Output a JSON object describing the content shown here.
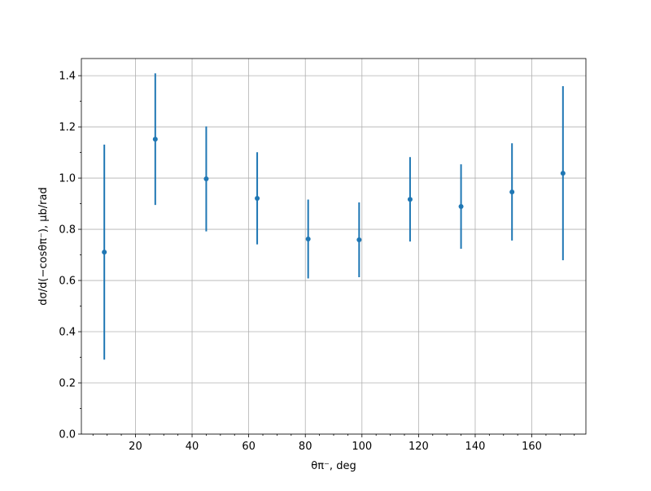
{
  "chart_data": {
    "type": "errorbar",
    "xlabel": "θπ⁻, deg",
    "ylabel": "dσ/d(−cosθπ⁻), μb/rad",
    "x": [
      9,
      27,
      45,
      63,
      81,
      99,
      117,
      135,
      153,
      171
    ],
    "series": [
      {
        "color": "#1f77b4",
        "values": [
          0.711,
          1.152,
          0.997,
          0.921,
          0.762,
          0.759,
          0.917,
          0.889,
          0.946,
          1.019
        ],
        "errors": [
          0.42,
          0.257,
          0.205,
          0.18,
          0.154,
          0.146,
          0.165,
          0.165,
          0.19,
          0.34
        ]
      }
    ],
    "xlim": [
      0.9,
      179.1
    ],
    "ylim": [
      0,
      1.467
    ],
    "xticks": [
      20,
      40,
      60,
      80,
      100,
      120,
      140,
      160
    ],
    "yticks": [
      {
        "value": 0,
        "label": "0.0"
      },
      0.2,
      0.4,
      0.6,
      0.8,
      {
        "value": 1,
        "label": "1.0"
      },
      1.2,
      1.4
    ],
    "xminorticks": [
      5,
      10,
      15,
      25,
      30,
      35,
      45,
      50,
      55,
      65,
      70,
      75,
      85,
      90,
      95,
      105,
      110,
      115,
      125,
      130,
      135,
      145,
      150,
      155,
      165,
      170,
      175
    ],
    "yminorticks": [
      0.1,
      0.3,
      0.5,
      0.7,
      0.9,
      1.1,
      1.3
    ],
    "grid": true
  }
}
